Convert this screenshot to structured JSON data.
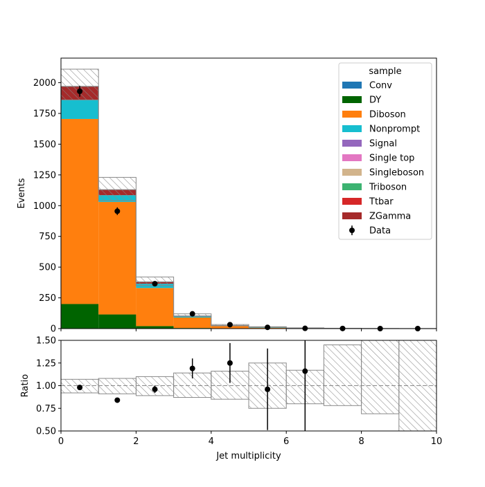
{
  "chart_data": [
    {
      "type": "stacked-histogram",
      "ylabel": "Events",
      "xlim": [
        0,
        10
      ],
      "ylim": [
        0,
        2200
      ],
      "bin_edges": [
        0,
        1,
        2,
        3,
        4,
        5,
        6,
        7,
        8,
        9,
        10
      ],
      "x_ticks": [
        "0",
        "2",
        "4",
        "6",
        "8",
        "10"
      ],
      "y_ticks": [
        "0",
        "250",
        "500",
        "750",
        "1000",
        "1250",
        "1500",
        "1750",
        "2000"
      ],
      "legend": {
        "title": "sample",
        "position": "top-right",
        "entries": [
          "Conv",
          "DY",
          "Diboson",
          "Nonprompt",
          "Signal",
          "Single top",
          "Singleboson",
          "Triboson",
          "Ttbar",
          "ZGamma",
          "Data"
        ]
      },
      "series": [
        {
          "name": "Conv",
          "color": "#1f77b4",
          "values": [
            0,
            0,
            0,
            0,
            0,
            0,
            0,
            0,
            0,
            0
          ]
        },
        {
          "name": "DY",
          "color": "#006400",
          "values": [
            200,
            115,
            20,
            5,
            2,
            1,
            0,
            0,
            0,
            0
          ]
        },
        {
          "name": "Diboson",
          "color": "#ff7f0e",
          "values": [
            1505,
            915,
            310,
            85,
            18,
            5,
            2,
            1,
            0,
            0
          ]
        },
        {
          "name": "Nonprompt",
          "color": "#17becf",
          "values": [
            155,
            55,
            35,
            8,
            3,
            2,
            1,
            0,
            0,
            0
          ]
        },
        {
          "name": "Signal",
          "color": "#9467bd",
          "values": [
            0,
            0,
            0,
            0,
            0,
            0,
            0,
            0,
            0,
            0
          ]
        },
        {
          "name": "Single top",
          "color": "#e377c2",
          "values": [
            0,
            0,
            0,
            0,
            0,
            0,
            0,
            0,
            0,
            0
          ]
        },
        {
          "name": "Singleboson",
          "color": "#d2b48c",
          "values": [
            0,
            0,
            0,
            0,
            0,
            0,
            0,
            0,
            0,
            0
          ]
        },
        {
          "name": "Triboson",
          "color": "#3cb371",
          "values": [
            0,
            0,
            0,
            0,
            0,
            5,
            2,
            0,
            0,
            0
          ]
        },
        {
          "name": "Ttbar",
          "color": "#d62728",
          "values": [
            0,
            0,
            0,
            0,
            0,
            0,
            0,
            0,
            0,
            0
          ]
        },
        {
          "name": "ZGamma",
          "color": "#a52a2a",
          "values": [
            110,
            45,
            15,
            5,
            2,
            0,
            0,
            0,
            0,
            0
          ]
        }
      ],
      "uncertainty_band": {
        "hatch_color": "#888888",
        "up": [
          2110,
          1230,
          420,
          120,
          33,
          15,
          6,
          3,
          1,
          0
        ],
        "down": [
          1860,
          1040,
          350,
          100,
          23,
          11,
          4,
          1,
          0,
          0
        ]
      },
      "data": {
        "name": "Data",
        "x": [
          0.5,
          1.5,
          2.5,
          3.5,
          4.5,
          5.5,
          6.5,
          7.5,
          8.5,
          9.5
        ],
        "y": [
          1930,
          955,
          365,
          120,
          32,
          10,
          2,
          1,
          0,
          0
        ],
        "yerr": [
          44,
          31,
          19,
          11,
          6,
          3,
          1.4,
          1,
          0,
          0
        ]
      }
    },
    {
      "type": "ratio",
      "xlabel": "Jet multiplicity",
      "ylabel": "Ratio",
      "xlim": [
        0,
        10
      ],
      "ylim": [
        0.5,
        1.5
      ],
      "reference_line": 1.0,
      "x_ticks": [
        "0",
        "2",
        "4",
        "6",
        "8",
        "10"
      ],
      "y_ticks": [
        "0.50",
        "0.75",
        "1.00",
        "1.25",
        "1.50"
      ],
      "band": {
        "bin_edges": [
          0,
          1,
          2,
          3,
          4,
          5,
          6,
          7,
          8,
          9,
          10
        ],
        "up": [
          1.07,
          1.08,
          1.1,
          1.14,
          1.16,
          1.25,
          1.17,
          1.45,
          1.5,
          1.5
        ],
        "down": [
          0.92,
          0.91,
          0.89,
          0.87,
          0.85,
          0.75,
          0.8,
          0.78,
          0.69,
          0.5
        ]
      },
      "points": {
        "x": [
          0.5,
          1.5,
          2.5,
          3.5,
          4.5,
          5.5,
          6.5
        ],
        "y": [
          0.98,
          0.84,
          0.96,
          1.19,
          1.25,
          0.96,
          1.16
        ],
        "yerr": [
          0.02,
          0.02,
          0.04,
          0.11,
          0.22,
          0.45,
          1.0
        ]
      }
    }
  ]
}
